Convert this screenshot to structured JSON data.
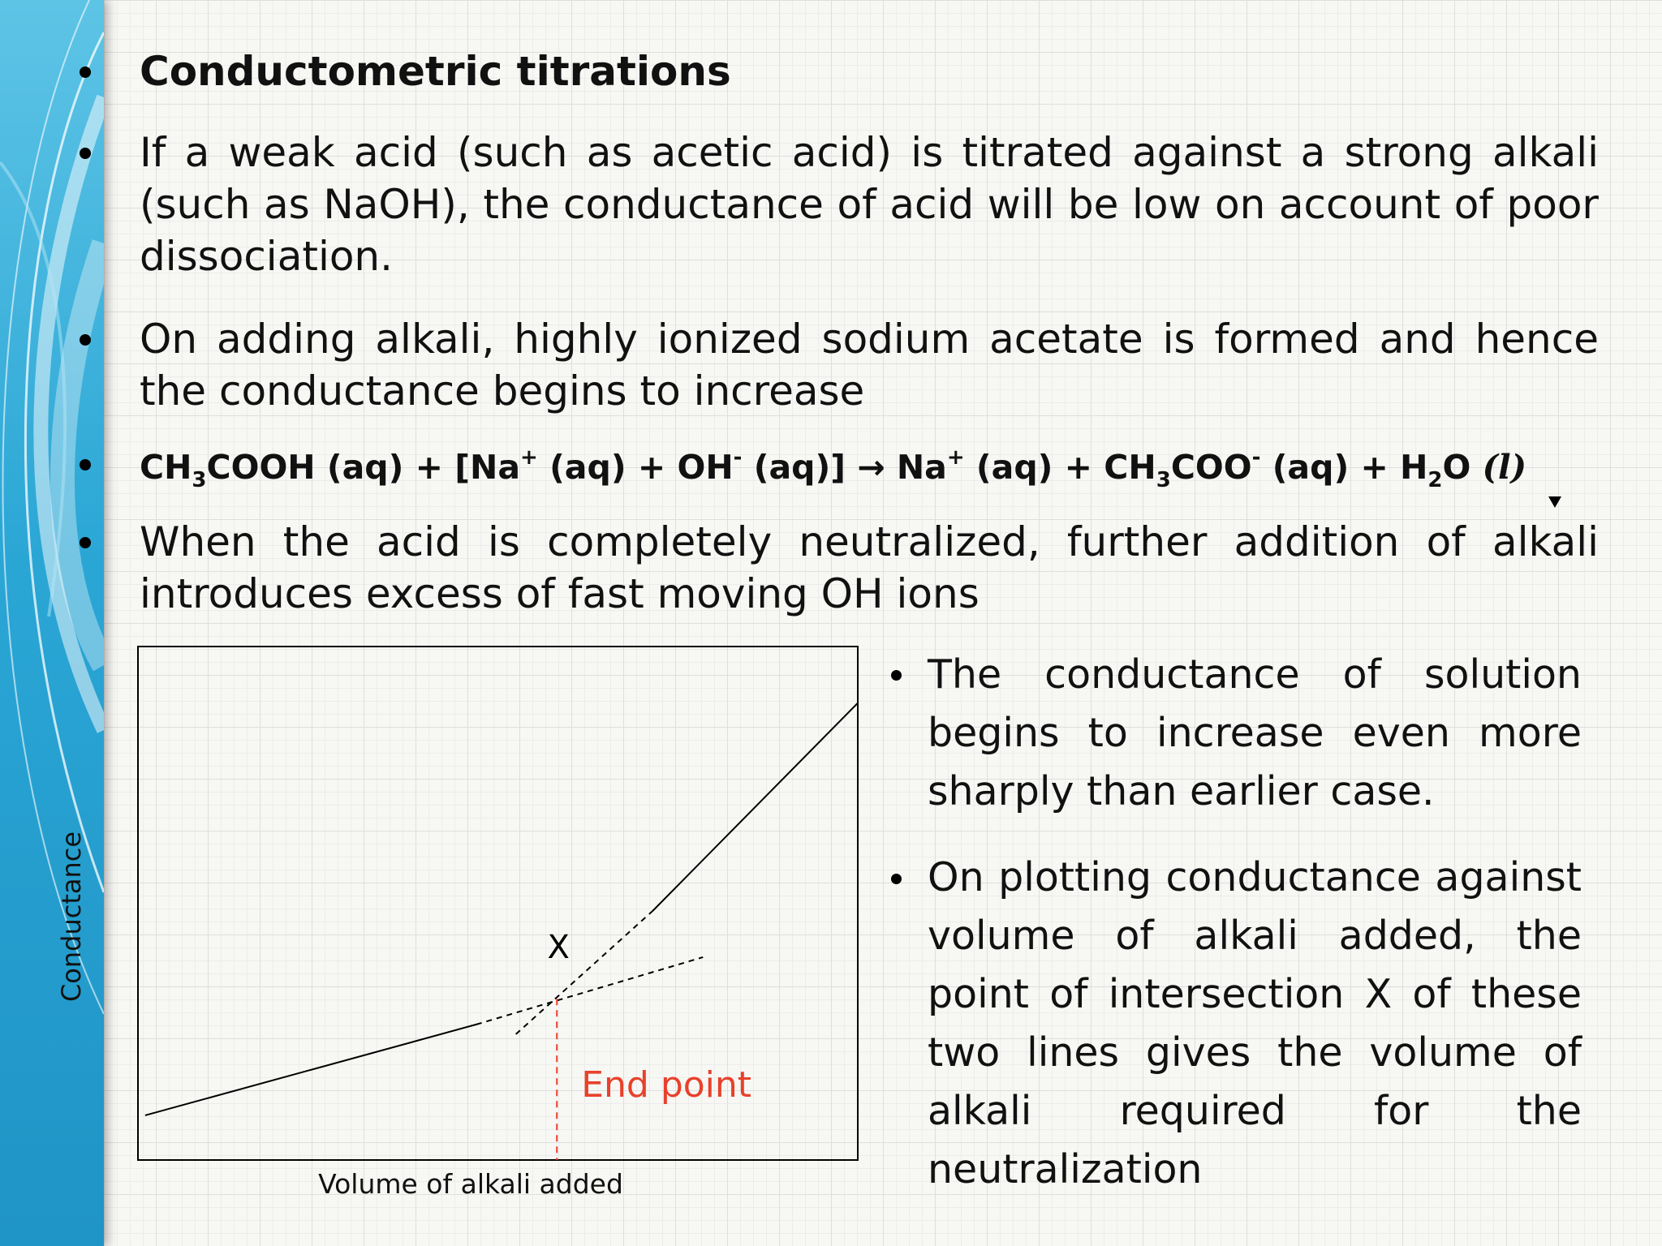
{
  "slide": {
    "heading": "Conductometric titrations",
    "para1": "If a weak acid (such as acetic acid) is titrated against a strong alkali (such as NaOH), the conductance of acid will be low on account of poor dissociation.",
    "para2": "On adding alkali, highly ionized sodium acetate is formed and hence the conductance begins to increase",
    "equation": {
      "t1": "CH",
      "s1": "3",
      "t2": "COOH (aq) + [Na",
      "p1": "+",
      "t3": " (aq) + OH",
      "p2": "-",
      "t4": " (aq)] ",
      "arrow": "→",
      "t5": " Na",
      "p3": "+",
      "t6": " (aq) + CH",
      "s2": "3",
      "t7": "COO",
      "p4": "-",
      "t8": " (aq) + H",
      "s3": "2",
      "t9": "O ",
      "phase": "(l)"
    },
    "para3": "When the acid is completely neutralized, further addition of alkali introduces excess of fast moving OH ions",
    "right1": "The conductance of solution begins to increase even more sharply than earlier case.",
    "right2": "On plotting conductance against volume of alkali added, the point of intersection X of these two lines gives the volume of alkali required for the neutralization"
  },
  "chart_data": {
    "type": "line",
    "ylabel": "Conductance",
    "xlabel": "Volume of alkali added",
    "point_label": "X",
    "endpoint_label": "End point",
    "endpoint_color": "#e8412b",
    "series": [
      {
        "solid": [
          [
            0.01,
            0.087
          ],
          [
            0.47,
            0.264
          ]
        ],
        "dashed": [
          [
            0.47,
            0.264
          ],
          [
            0.785,
            0.395
          ]
        ]
      },
      {
        "solid": [
          [
            0.715,
            0.485
          ],
          [
            1.0,
            0.89
          ]
        ],
        "dashed": [
          [
            0.525,
            0.245
          ],
          [
            0.715,
            0.485
          ]
        ]
      }
    ],
    "end_point_x": 0.582,
    "intersection": [
      0.582,
      0.314
    ],
    "xlim": [
      0,
      1
    ],
    "ylim": [
      0,
      1
    ]
  }
}
